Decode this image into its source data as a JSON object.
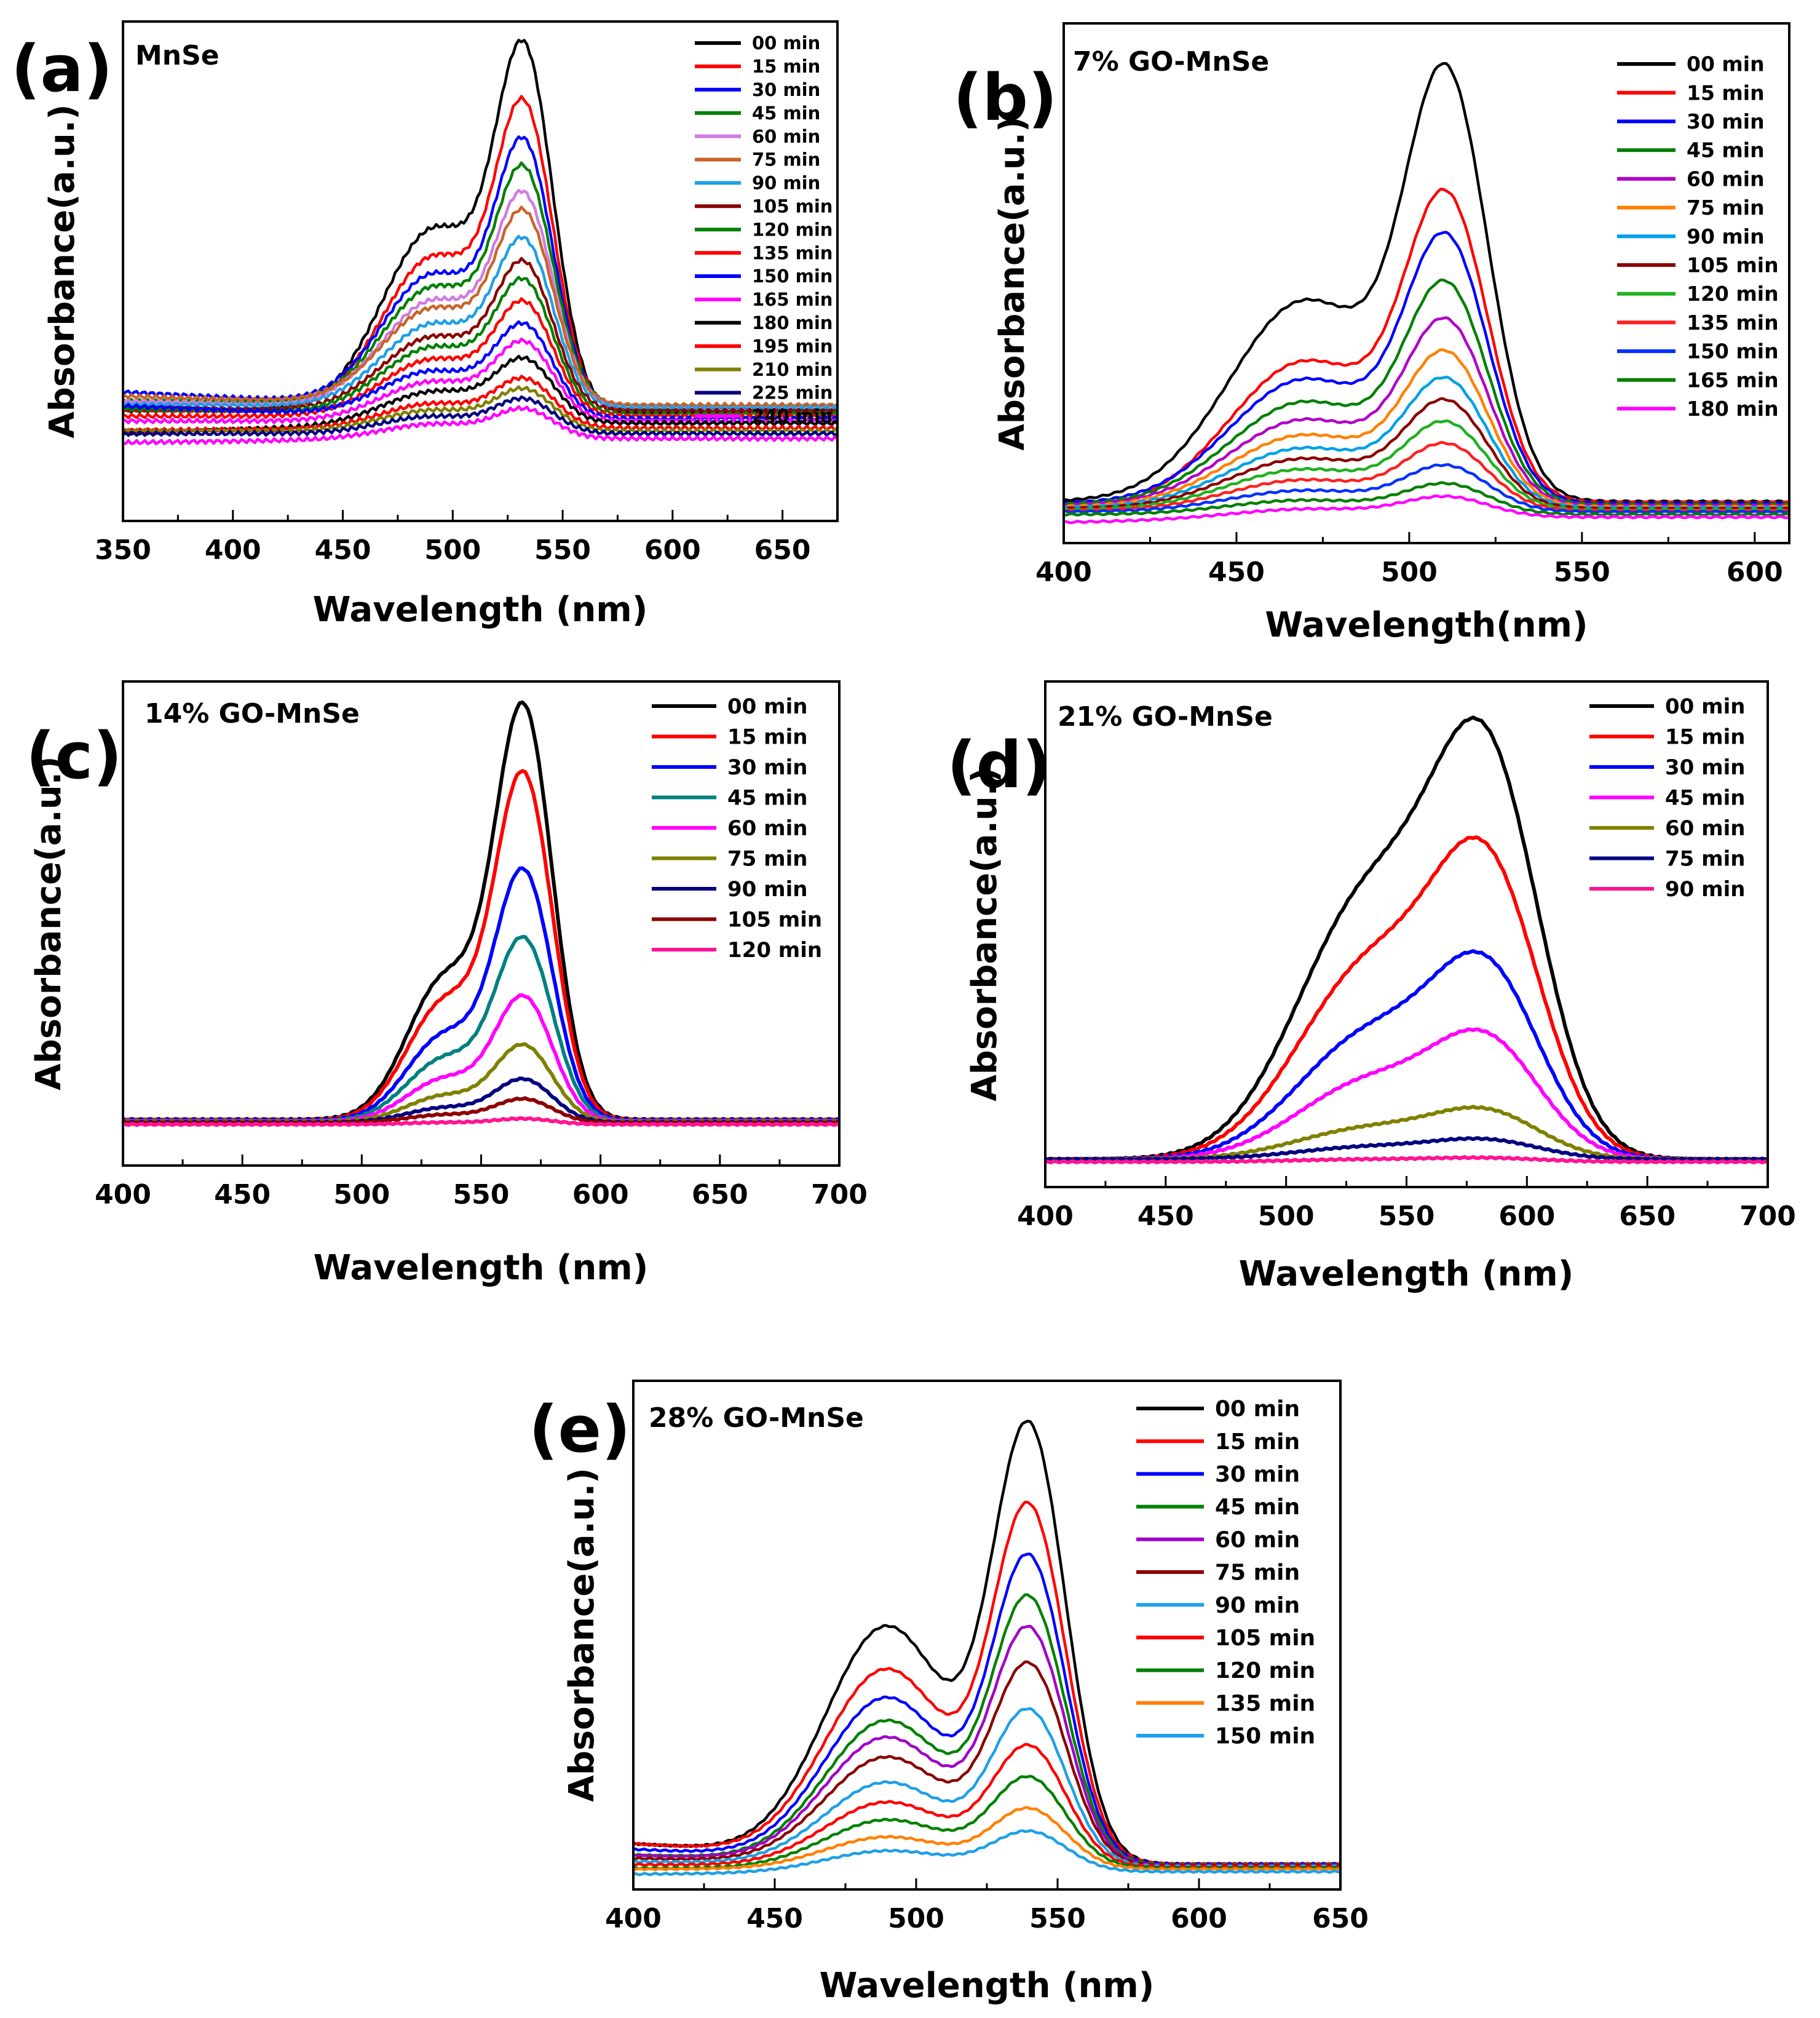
{
  "figure": {
    "label": "Time-dependent UV–Vis absorbance spectra of MnSe and GO-MnSe composites"
  },
  "chart_data": [
    {
      "id": "a",
      "type": "line",
      "panel_letter": "(a)",
      "title": "MnSe",
      "xlabel": "Wavelength (nm)",
      "ylabel": "Absorbance(a.u.)",
      "xlim": [
        350,
        675
      ],
      "xticks": [
        350,
        400,
        450,
        500,
        550,
        600,
        650
      ],
      "ylim": [
        0,
        1.0
      ],
      "yticks_visible": false,
      "legend_position": "top-right",
      "peak_nm": 533,
      "shoulder_nm": 492,
      "shoulder_rel": 0.56,
      "sigma_main": 13,
      "sigma_shoulder": 24,
      "series": [
        {
          "name": "00 min",
          "color": "#000000",
          "peak": 0.74,
          "baseline": 0.218,
          "left_offset": 0.004
        },
        {
          "name": "15 min",
          "color": "#ff0000",
          "peak": 0.62,
          "baseline": 0.222,
          "left_offset": 0.0
        },
        {
          "name": "30 min",
          "color": "#0000ff",
          "peak": 0.54,
          "baseline": 0.225,
          "left_offset": 0.033
        },
        {
          "name": "45 min",
          "color": "#008000",
          "peak": 0.48,
          "baseline": 0.23,
          "left_offset": 0.01
        },
        {
          "name": "60 min",
          "color": "#d07be0",
          "peak": 0.43,
          "baseline": 0.228,
          "left_offset": 0.012
        },
        {
          "name": "75 min",
          "color": "#c86428",
          "peak": 0.39,
          "baseline": 0.232,
          "left_offset": 0.018
        },
        {
          "name": "90 min",
          "color": "#1ea0e6",
          "peak": 0.34,
          "baseline": 0.226,
          "left_offset": 0.008
        },
        {
          "name": "105 min",
          "color": "#8b0000",
          "peak": 0.3,
          "baseline": 0.22,
          "left_offset": 0.005
        },
        {
          "name": "120 min",
          "color": "#008000",
          "peak": 0.27,
          "baseline": 0.214,
          "left_offset": 0.01
        },
        {
          "name": "135 min",
          "color": "#ff0000",
          "peak": 0.23,
          "baseline": 0.21,
          "left_offset": 0.0
        },
        {
          "name": "150 min",
          "color": "#0000ff",
          "peak": 0.19,
          "baseline": 0.205,
          "left_offset": 0.025
        },
        {
          "name": "165 min",
          "color": "#ff00ff",
          "peak": 0.16,
          "baseline": 0.2,
          "left_offset": 0.0
        },
        {
          "name": "180 min",
          "color": "#000000",
          "peak": 0.13,
          "baseline": 0.196,
          "left_offset": -0.02
        },
        {
          "name": "195 min",
          "color": "#ff0000",
          "peak": 0.1,
          "baseline": 0.186,
          "left_offset": -0.005
        },
        {
          "name": "210 min",
          "color": "#808000",
          "peak": 0.085,
          "baseline": 0.18,
          "left_offset": 0.0
        },
        {
          "name": "225 min",
          "color": "#000080",
          "peak": 0.07,
          "baseline": 0.175,
          "left_offset": 0.0
        },
        {
          "name": "240 min",
          "color": "#ff00ff",
          "peak": 0.06,
          "baseline": 0.165,
          "left_offset": -0.008
        }
      ]
    },
    {
      "id": "b",
      "type": "line",
      "panel_letter": "(b)",
      "title": "7% GO-MnSe",
      "xlabel": "Wavelength(nm)",
      "ylabel": "Absorbance(a.u.)",
      "xlim": [
        400,
        610
      ],
      "xticks": [
        400,
        450,
        500,
        550,
        600
      ],
      "ylim": [
        0,
        1.0
      ],
      "yticks_visible": false,
      "legend_position": "top-right",
      "peak_nm": 511,
      "shoulder_nm": 470,
      "shoulder_rel": 0.5,
      "sigma_main": 12,
      "sigma_shoulder": 22,
      "series": [
        {
          "name": "00 min",
          "color": "#000000",
          "peak": 0.84,
          "baseline": 0.08,
          "left_offset": 0.0
        },
        {
          "name": "15 min",
          "color": "#ff0000",
          "peak": 0.6,
          "baseline": 0.078,
          "left_offset": -0.015
        },
        {
          "name": "30 min",
          "color": "#0000ff",
          "peak": 0.52,
          "baseline": 0.076,
          "left_offset": 0.0
        },
        {
          "name": "45 min",
          "color": "#008000",
          "peak": 0.43,
          "baseline": 0.074,
          "left_offset": 0.0
        },
        {
          "name": "60 min",
          "color": "#b000c8",
          "peak": 0.36,
          "baseline": 0.072,
          "left_offset": 0.0
        },
        {
          "name": "75 min",
          "color": "#ff8000",
          "peak": 0.3,
          "baseline": 0.07,
          "left_offset": 0.0
        },
        {
          "name": "90 min",
          "color": "#00a0e6",
          "peak": 0.25,
          "baseline": 0.068,
          "left_offset": 0.0
        },
        {
          "name": "105 min",
          "color": "#8b0000",
          "peak": 0.21,
          "baseline": 0.066,
          "left_offset": 0.0
        },
        {
          "name": "120 min",
          "color": "#20b020",
          "peak": 0.17,
          "baseline": 0.064,
          "left_offset": 0.0
        },
        {
          "name": "135 min",
          "color": "#ff2020",
          "peak": 0.13,
          "baseline": 0.062,
          "left_offset": 0.0
        },
        {
          "name": "150 min",
          "color": "#0030ff",
          "peak": 0.09,
          "baseline": 0.06,
          "left_offset": 0.0
        },
        {
          "name": "165 min",
          "color": "#008000",
          "peak": 0.06,
          "baseline": 0.055,
          "left_offset": 0.0
        },
        {
          "name": "180 min",
          "color": "#ff00ff",
          "peak": 0.04,
          "baseline": 0.05,
          "left_offset": -0.01
        }
      ]
    },
    {
      "id": "c",
      "type": "line",
      "panel_letter": "(c)",
      "title": "14% GO-MnSe",
      "xlabel": "Wavelength (nm)",
      "ylabel": "Absorbance(a.u.)",
      "xlim": [
        400,
        700
      ],
      "xticks": [
        400,
        450,
        500,
        550,
        600,
        650,
        700
      ],
      "ylim": [
        0,
        1.0
      ],
      "yticks_visible": false,
      "legend_position": "top-right",
      "peak_nm": 568,
      "shoulder_nm": 535,
      "shoulder_rel": 0.35,
      "sigma_main": 12,
      "sigma_shoulder": 16,
      "series": [
        {
          "name": "00 min",
          "color": "#000000",
          "peak": 0.86,
          "baseline": 0.095,
          "left_offset": 0.0
        },
        {
          "name": "15 min",
          "color": "#ff0000",
          "peak": 0.72,
          "baseline": 0.094,
          "left_offset": 0.0
        },
        {
          "name": "30 min",
          "color": "#0000ff",
          "peak": 0.52,
          "baseline": 0.093,
          "left_offset": 0.0
        },
        {
          "name": "45 min",
          "color": "#008080",
          "peak": 0.38,
          "baseline": 0.092,
          "left_offset": 0.0
        },
        {
          "name": "60 min",
          "color": "#ff00ff",
          "peak": 0.26,
          "baseline": 0.091,
          "left_offset": 0.0
        },
        {
          "name": "75 min",
          "color": "#808000",
          "peak": 0.16,
          "baseline": 0.09,
          "left_offset": 0.0
        },
        {
          "name": "90 min",
          "color": "#000080",
          "peak": 0.09,
          "baseline": 0.089,
          "left_offset": 0.0
        },
        {
          "name": "105 min",
          "color": "#8b0000",
          "peak": 0.05,
          "baseline": 0.088,
          "left_offset": 0.0
        },
        {
          "name": "120 min",
          "color": "#ff1493",
          "peak": 0.012,
          "baseline": 0.085,
          "left_offset": 0.0
        }
      ]
    },
    {
      "id": "d",
      "type": "line",
      "panel_letter": "(d)",
      "title": "21% GO-MnSe",
      "xlabel": "Wavelength (nm)",
      "ylabel": "Absorbance(a.u.)",
      "xlim": [
        400,
        700
      ],
      "xticks": [
        400,
        450,
        500,
        550,
        600,
        650,
        700
      ],
      "ylim": [
        0,
        1.0
      ],
      "yticks_visible": false,
      "legend_position": "top-right",
      "peak_nm": 584,
      "shoulder_nm": 535,
      "shoulder_rel": 0.72,
      "sigma_main": 22,
      "sigma_shoulder": 30,
      "series": [
        {
          "name": "00 min",
          "color": "#000000",
          "peak": 0.85,
          "baseline": 0.055,
          "left_offset": 0.0
        },
        {
          "name": "15 min",
          "color": "#ff0000",
          "peak": 0.62,
          "baseline": 0.055,
          "left_offset": 0.0
        },
        {
          "name": "30 min",
          "color": "#0000ff",
          "peak": 0.4,
          "baseline": 0.055,
          "left_offset": 0.0
        },
        {
          "name": "45 min",
          "color": "#ff00ff",
          "peak": 0.25,
          "baseline": 0.055,
          "left_offset": 0.0
        },
        {
          "name": "60 min",
          "color": "#808000",
          "peak": 0.1,
          "baseline": 0.055,
          "left_offset": 0.0
        },
        {
          "name": "75 min",
          "color": "#000080",
          "peak": 0.04,
          "baseline": 0.055,
          "left_offset": 0.0
        },
        {
          "name": "90 min",
          "color": "#ff1493",
          "peak": 0.008,
          "baseline": 0.05,
          "left_offset": 0.0
        }
      ]
    },
    {
      "id": "e",
      "type": "line",
      "panel_letter": "(e)",
      "title": "28% GO-MnSe",
      "xlabel": "Wavelength (nm)",
      "ylabel": "Absorbance(a.u.)",
      "xlim": [
        400,
        650
      ],
      "xticks": [
        400,
        450,
        500,
        550,
        600,
        650
      ],
      "ylim": [
        0,
        1.0
      ],
      "yticks_visible": false,
      "legend_position": "top-right",
      "peak_nm": 540,
      "shoulder_nm": 490,
      "shoulder_rel": 0.55,
      "sigma_main": 13,
      "sigma_shoulder": 22,
      "series": [
        {
          "name": "00 min",
          "color": "#000000",
          "peak": 0.87,
          "baseline": 0.05,
          "left_offset": 0.04
        },
        {
          "name": "15 min",
          "color": "#ff0000",
          "peak": 0.71,
          "baseline": 0.05,
          "left_offset": 0.04
        },
        {
          "name": "30 min",
          "color": "#0000ff",
          "peak": 0.61,
          "baseline": 0.049,
          "left_offset": 0.03
        },
        {
          "name": "45 min",
          "color": "#008000",
          "peak": 0.53,
          "baseline": 0.048,
          "left_offset": 0.02
        },
        {
          "name": "60 min",
          "color": "#a000c8",
          "peak": 0.47,
          "baseline": 0.047,
          "left_offset": 0.02
        },
        {
          "name": "75 min",
          "color": "#8b0000",
          "peak": 0.4,
          "baseline": 0.046,
          "left_offset": 0.015
        },
        {
          "name": "90 min",
          "color": "#1ea0e6",
          "peak": 0.31,
          "baseline": 0.045,
          "left_offset": 0.01
        },
        {
          "name": "105 min",
          "color": "#ff0000",
          "peak": 0.24,
          "baseline": 0.044,
          "left_offset": 0.005
        },
        {
          "name": "120 min",
          "color": "#008000",
          "peak": 0.18,
          "baseline": 0.042,
          "left_offset": 0.0
        },
        {
          "name": "135 min",
          "color": "#ff8000",
          "peak": 0.12,
          "baseline": 0.04,
          "left_offset": 0.0
        },
        {
          "name": "150 min",
          "color": "#1ea0e6",
          "peak": 0.08,
          "baseline": 0.035,
          "left_offset": -0.005
        }
      ]
    }
  ]
}
